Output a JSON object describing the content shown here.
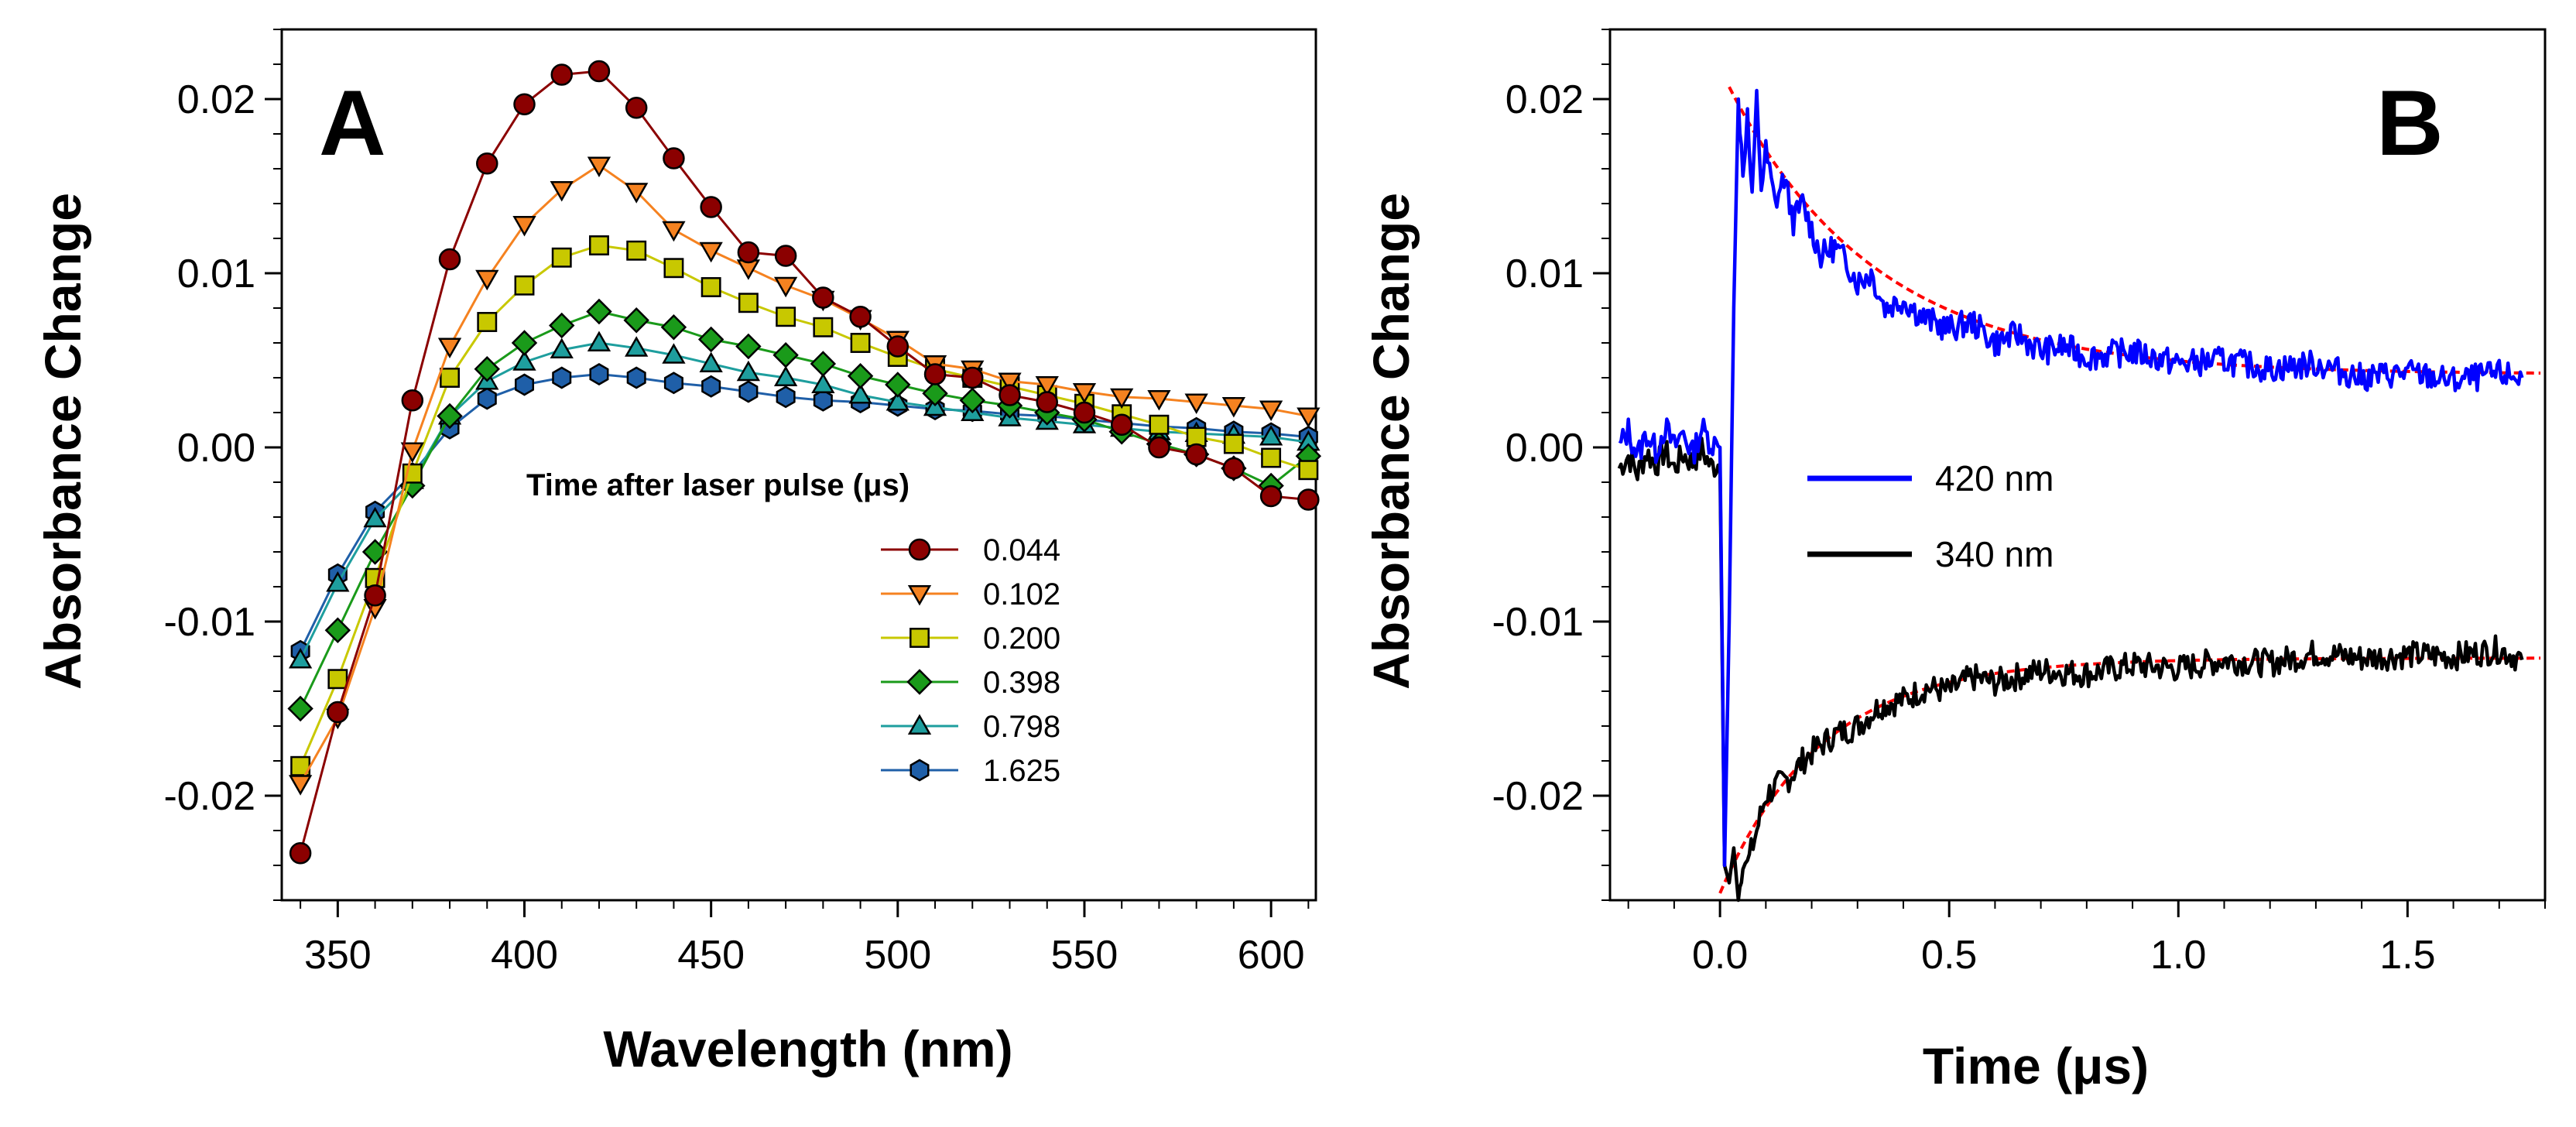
{
  "chart_data": [
    {
      "type": "line",
      "panel_label": "A",
      "xlabel": "Wavelength (nm)",
      "ylabel": "Absorbance Change",
      "xlim": [
        335,
        612
      ],
      "ylim": [
        -0.026,
        0.024
      ],
      "xticks": [
        350,
        400,
        450,
        500,
        550,
        600
      ],
      "xtick_labels": [
        "350",
        "400",
        "450",
        "500",
        "550",
        "600"
      ],
      "yticks": [
        -0.02,
        -0.01,
        0.0,
        0.01,
        0.02
      ],
      "ytick_labels": [
        "-0.02",
        "-0.01",
        "0.00",
        "0.01",
        "0.02"
      ],
      "grid": false,
      "legend_title": "Time after laser pulse (μs)",
      "legend_position": "center-right",
      "x": [
        340,
        350,
        360,
        370,
        380,
        390,
        400,
        410,
        420,
        430,
        440,
        450,
        460,
        470,
        480,
        490,
        500,
        510,
        520,
        530,
        540,
        550,
        560,
        570,
        580,
        590,
        600,
        610
      ],
      "series": [
        {
          "name": "0.044",
          "color": "#8B0000",
          "marker": "circle",
          "values": [
            -0.0233,
            -0.0152,
            -0.0085,
            0.0027,
            0.0108,
            0.0163,
            0.0197,
            0.0214,
            0.0216,
            0.0195,
            0.0166,
            0.0138,
            0.0112,
            0.011,
            0.0086,
            0.0075,
            0.0058,
            0.0042,
            0.004,
            0.003,
            0.0026,
            0.002,
            0.0013,
            0.0,
            -0.0004,
            -0.0012,
            -0.0028,
            -0.003
          ]
        },
        {
          "name": "0.102",
          "color": "#F58220",
          "marker": "triangle-down",
          "values": [
            -0.0193,
            -0.0155,
            -0.0092,
            -0.0002,
            0.0058,
            0.0097,
            0.0128,
            0.0148,
            0.0162,
            0.0147,
            0.0125,
            0.0113,
            0.0103,
            0.0093,
            0.0085,
            0.0074,
            0.0062,
            0.0048,
            0.0045,
            0.0038,
            0.0036,
            0.0032,
            0.0029,
            0.0028,
            0.0026,
            0.0024,
            0.0022,
            0.0018
          ]
        },
        {
          "name": "0.200",
          "color": "#C8C800",
          "marker": "square",
          "values": [
            -0.0183,
            -0.0133,
            -0.0075,
            -0.0015,
            0.004,
            0.0072,
            0.0093,
            0.0109,
            0.0116,
            0.0113,
            0.0103,
            0.0092,
            0.0083,
            0.0075,
            0.0069,
            0.006,
            0.0052,
            0.0045,
            0.004,
            0.0035,
            0.003,
            0.0025,
            0.0019,
            0.0013,
            0.0006,
            0.0002,
            -0.0006,
            -0.0013
          ]
        },
        {
          "name": "0.398",
          "color": "#1A9A1A",
          "marker": "diamond",
          "values": [
            -0.015,
            -0.0105,
            -0.006,
            -0.0022,
            0.0018,
            0.0045,
            0.006,
            0.007,
            0.0078,
            0.0073,
            0.0069,
            0.0062,
            0.0058,
            0.0053,
            0.0048,
            0.0041,
            0.0036,
            0.0031,
            0.0027,
            0.0024,
            0.002,
            0.0016,
            0.0009,
            0.0002,
            -0.0004,
            -0.0012,
            -0.0022,
            -0.0005
          ]
        },
        {
          "name": "0.798",
          "color": "#1E9E9E",
          "marker": "triangle-up",
          "values": [
            -0.0122,
            -0.0078,
            -0.0041,
            -0.0019,
            0.0018,
            0.0038,
            0.0049,
            0.0056,
            0.006,
            0.0057,
            0.0053,
            0.0048,
            0.0043,
            0.004,
            0.0036,
            0.003,
            0.0026,
            0.0023,
            0.002,
            0.0017,
            0.0015,
            0.0013,
            0.0011,
            0.0009,
            0.0008,
            0.0007,
            0.0006,
            0.0003
          ]
        },
        {
          "name": "1.625",
          "color": "#1F5FA8",
          "marker": "hexagon",
          "values": [
            -0.0117,
            -0.0073,
            -0.0037,
            -0.0015,
            0.0011,
            0.0028,
            0.0036,
            0.004,
            0.0042,
            0.004,
            0.0037,
            0.0035,
            0.0032,
            0.0029,
            0.0027,
            0.0026,
            0.0024,
            0.0022,
            0.0021,
            0.0019,
            0.0018,
            0.0016,
            0.0014,
            0.0012,
            0.0011,
            0.0009,
            0.0008,
            0.0006
          ]
        }
      ]
    },
    {
      "type": "line",
      "panel_label": "B",
      "xlabel": "Time (μs)",
      "ylabel": "Absorbance Change",
      "xlim": [
        -0.24,
        1.8
      ],
      "ylim": [
        -0.026,
        0.024
      ],
      "xticks": [
        0.0,
        0.5,
        1.0,
        1.5
      ],
      "xtick_labels": [
        "0.0",
        "0.5",
        "1.0",
        "1.5"
      ],
      "yticks": [
        -0.02,
        -0.01,
        0.0,
        0.01,
        0.02
      ],
      "ytick_labels": [
        "-0.02",
        "-0.01",
        "0.00",
        "0.01",
        "0.02"
      ],
      "grid": false,
      "legend_position": "center-left",
      "series": [
        {
          "name": "420 nm",
          "color": "#0000FF",
          "x": [
            -0.22,
            -0.2,
            -0.18,
            -0.16,
            -0.14,
            -0.12,
            -0.1,
            -0.08,
            -0.06,
            -0.04,
            -0.02,
            0.0,
            0.01,
            0.02,
            0.03,
            0.04,
            0.05,
            0.06,
            0.07,
            0.08,
            0.09,
            0.1,
            0.12,
            0.14,
            0.16,
            0.18,
            0.2,
            0.22,
            0.25,
            0.28,
            0.3,
            0.33,
            0.36,
            0.4,
            0.44,
            0.48,
            0.5,
            0.55,
            0.6,
            0.65,
            0.7,
            0.75,
            0.8,
            0.9,
            1.0,
            1.1,
            1.2,
            1.3,
            1.4,
            1.5,
            1.6,
            1.7,
            1.75
          ],
          "values": [
            0.0,
            0.001,
            -0.0005,
            0.0008,
            -0.0002,
            0.0012,
            0.0,
            0.0009,
            -0.0004,
            0.0011,
            0.0003,
            0.0,
            -0.024,
            -0.01,
            0.008,
            0.02,
            0.016,
            0.019,
            0.014,
            0.02,
            0.015,
            0.017,
            0.014,
            0.0155,
            0.013,
            0.014,
            0.0125,
            0.011,
            0.0115,
            0.0105,
            0.0095,
            0.01,
            0.008,
            0.0085,
            0.0075,
            0.007,
            0.0068,
            0.0072,
            0.006,
            0.0065,
            0.0055,
            0.0058,
            0.0052,
            0.0055,
            0.0048,
            0.005,
            0.0045,
            0.0048,
            0.004,
            0.0043,
            0.0038,
            0.0042,
            0.004
          ]
        },
        {
          "name": "340 nm",
          "color": "#000000",
          "x": [
            -0.22,
            -0.2,
            -0.18,
            -0.16,
            -0.14,
            -0.12,
            -0.1,
            -0.08,
            -0.06,
            -0.04,
            -0.02,
            0.0,
            0.01,
            0.02,
            0.03,
            0.04,
            0.05,
            0.06,
            0.08,
            0.1,
            0.12,
            0.15,
            0.18,
            0.2,
            0.25,
            0.3,
            0.35,
            0.4,
            0.45,
            0.5,
            0.55,
            0.6,
            0.7,
            0.8,
            0.9,
            1.0,
            1.1,
            1.2,
            1.3,
            1.4,
            1.5,
            1.6,
            1.7,
            1.75
          ],
          "values": [
            -0.0012,
            -0.0005,
            -0.0015,
            -0.0003,
            -0.001,
            -0.0002,
            -0.0012,
            -0.0004,
            -0.0009,
            -0.0001,
            -0.0011,
            -0.001,
            -0.024,
            -0.025,
            -0.023,
            -0.026,
            -0.0235,
            -0.024,
            -0.022,
            -0.02,
            -0.0195,
            -0.019,
            -0.018,
            -0.0175,
            -0.0165,
            -0.016,
            -0.0148,
            -0.0145,
            -0.0138,
            -0.014,
            -0.0132,
            -0.0135,
            -0.0128,
            -0.013,
            -0.0125,
            -0.0127,
            -0.0122,
            -0.0124,
            -0.0118,
            -0.0121,
            -0.0119,
            -0.012,
            -0.0116,
            -0.0122
          ]
        },
        {
          "fit_color": "#FF0000"
        }
      ]
    }
  ]
}
